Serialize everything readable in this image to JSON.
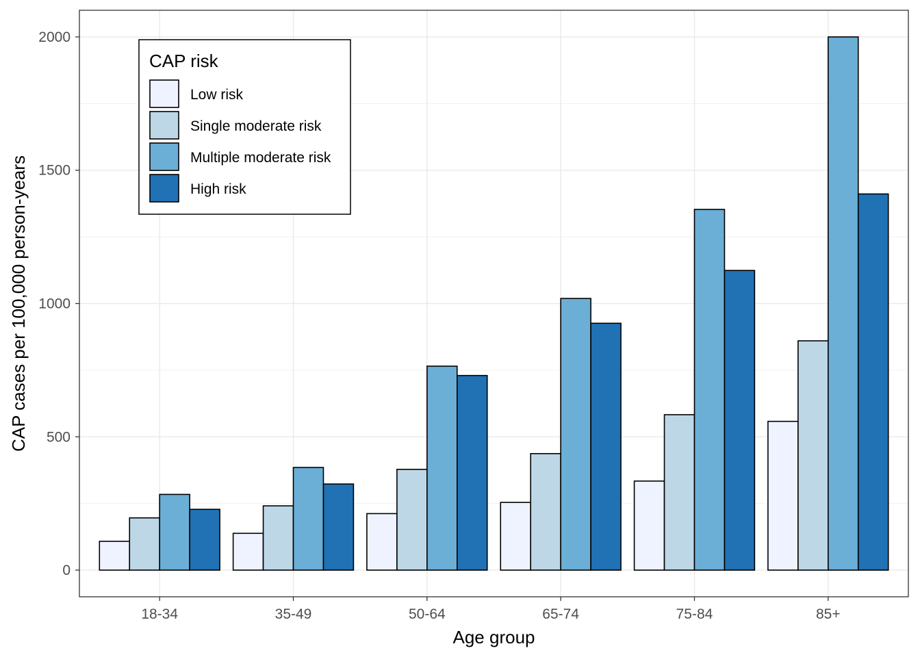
{
  "chart_data": {
    "type": "bar",
    "categories": [
      "18-34",
      "35-49",
      "50-64",
      "65-74",
      "75-84",
      "85+"
    ],
    "series": [
      {
        "name": "Low risk",
        "color": "#eff3ff",
        "values": [
          108,
          138,
          212,
          254,
          334,
          558
        ]
      },
      {
        "name": "Single moderate risk",
        "color": "#bdd7e7",
        "values": [
          196,
          241,
          378,
          437,
          583,
          860
        ]
      },
      {
        "name": "Multiple moderate risk",
        "color": "#6baed6",
        "values": [
          284,
          385,
          765,
          1019,
          1353,
          2000
        ]
      },
      {
        "name": "High risk",
        "color": "#2171b5",
        "values": [
          228,
          323,
          730,
          926,
          1124,
          1411
        ]
      }
    ],
    "xlabel": "Age group",
    "ylabel": "CAP cases per 100,000 person-years",
    "ylim": [
      -100,
      2100
    ],
    "yticks": [
      0,
      500,
      1000,
      1500,
      2000
    ],
    "grid": true,
    "legend": {
      "title": "CAP risk",
      "position": "top-left"
    }
  }
}
